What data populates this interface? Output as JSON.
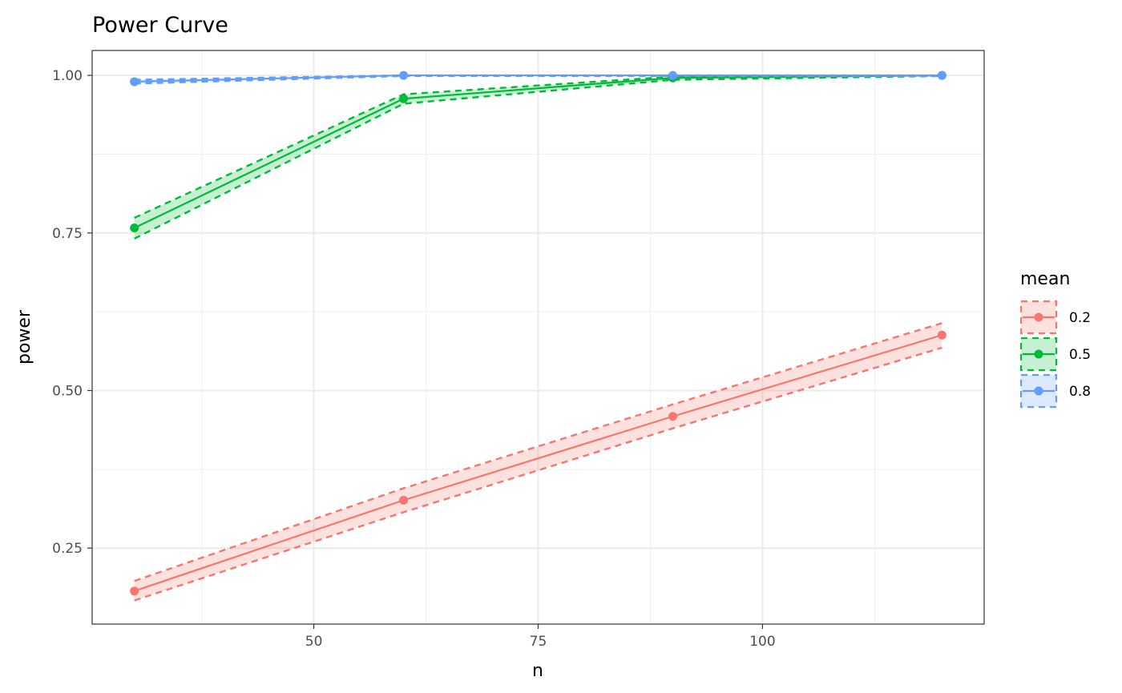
{
  "chart_data": {
    "type": "line",
    "title": "Power Curve",
    "xlabel": "n",
    "ylabel": "power",
    "xlim": [
      25.3,
      124.7
    ],
    "ylim": [
      0.1295,
      1.0395
    ],
    "x_ticks": [
      50,
      75,
      100
    ],
    "x_tick_labels": [
      "50",
      "75",
      "100"
    ],
    "y_ticks": [
      0.25,
      0.5,
      0.75,
      1.0
    ],
    "y_tick_labels": [
      "0.25",
      "0.50",
      "0.75",
      "1.00"
    ],
    "grid": true,
    "legend_title": "mean",
    "legend_position": "right",
    "x": [
      30,
      60,
      90,
      120
    ],
    "series": [
      {
        "name": "0.2",
        "color": "#F8766D",
        "values": [
          0.182,
          0.326,
          0.459,
          0.588
        ],
        "lower": [
          0.167,
          0.307,
          0.44,
          0.568
        ],
        "upper": [
          0.198,
          0.345,
          0.478,
          0.607
        ]
      },
      {
        "name": "0.5",
        "color": "#00BA38",
        "values": [
          0.758,
          0.963,
          0.996,
          1.0
        ],
        "lower": [
          0.741,
          0.955,
          0.993,
          0.999
        ],
        "upper": [
          0.774,
          0.97,
          0.998,
          1.0
        ]
      },
      {
        "name": "0.8",
        "color": "#619CFF",
        "values": [
          0.99,
          1.0,
          1.0,
          1.0
        ],
        "lower": [
          0.987,
          0.999,
          0.999,
          0.999
        ],
        "upper": [
          0.993,
          1.0,
          1.0,
          1.0
        ]
      }
    ]
  }
}
